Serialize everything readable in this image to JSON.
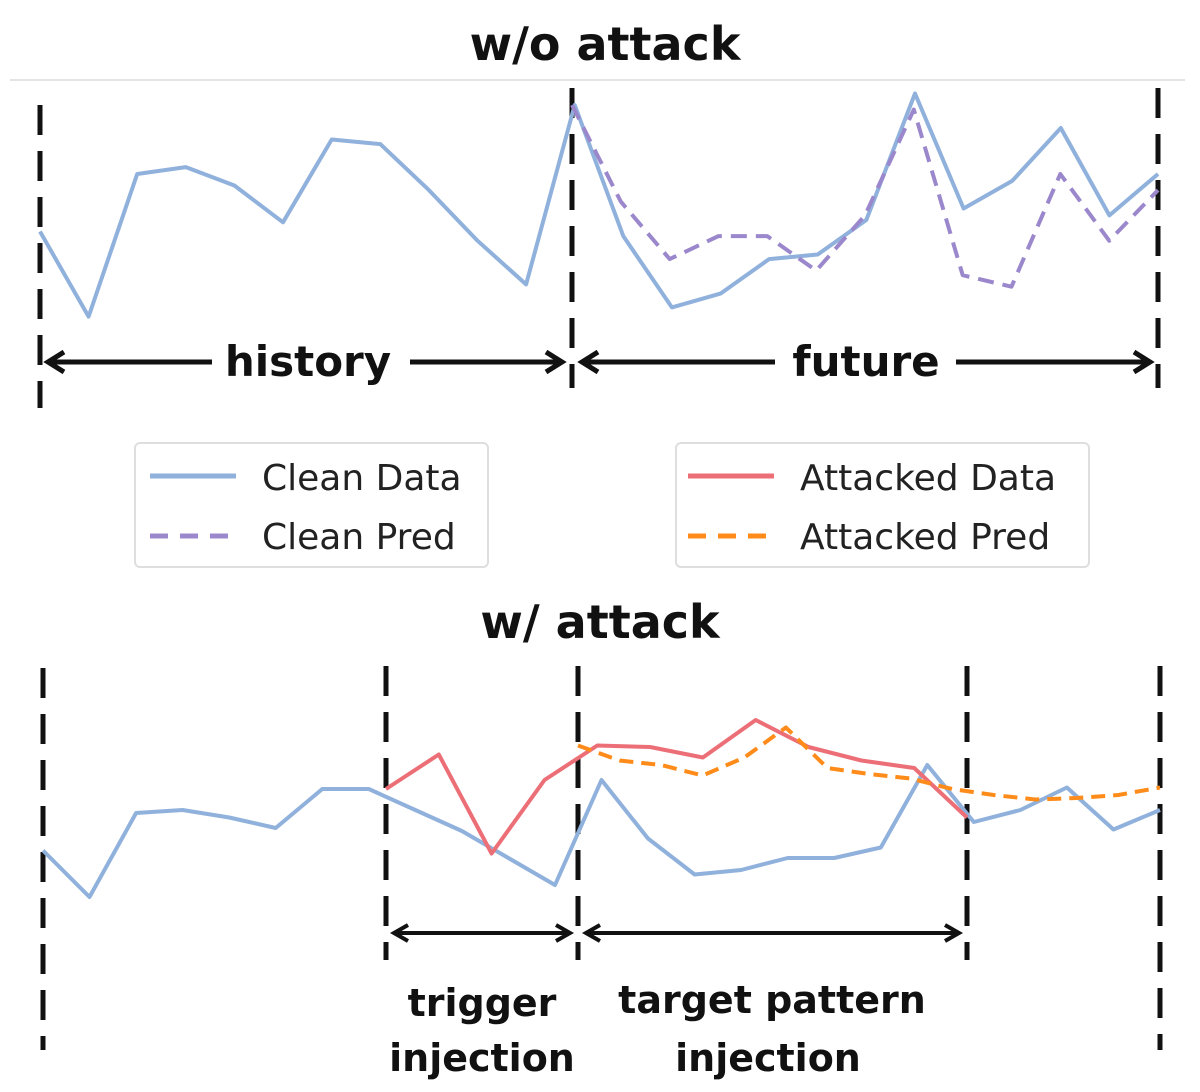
{
  "top_panel": {
    "title": "w/o attack",
    "history_label": "history",
    "future_label": "future"
  },
  "bottom_panel": {
    "title": "w/ attack",
    "trigger_label_line1": "trigger",
    "trigger_label_line2": "injection",
    "target_label_line1": "target pattern",
    "target_label_line2": "injection"
  },
  "legend": {
    "clean": [
      {
        "label": "Clean Data",
        "color": "#8fb1dc",
        "style": "solid"
      },
      {
        "label": "Clean Pred",
        "color": "#9b88cc",
        "style": "dashed"
      }
    ],
    "attacked": [
      {
        "label": "Attacked Data",
        "color": "#ec6f77",
        "style": "solid"
      },
      {
        "label": "Attacked Pred",
        "color": "#ff8c1a",
        "style": "dashed"
      }
    ]
  },
  "series": {
    "top_clean_data": [
      0.55,
      0.92,
      0.3,
      0.27,
      0.35,
      0.51,
      0.15,
      0.17,
      0.37,
      0.59,
      0.78,
      0.0,
      0.57,
      0.88,
      0.82,
      0.67,
      0.65,
      0.5,
      -0.05,
      0.45,
      0.33,
      0.1,
      0.48,
      0.3
    ],
    "top_clean_pred": [
      0.0,
      0.42,
      0.67,
      0.57,
      0.57,
      0.72,
      0.48,
      0.02,
      0.74,
      0.79,
      0.3,
      0.59,
      0.37
    ],
    "bottom_clean_data": [
      0.47,
      0.78,
      0.22,
      0.2,
      0.25,
      0.32,
      0.06,
      0.06,
      0.2,
      0.34,
      0.52,
      0.7,
      0.0,
      0.39,
      0.63,
      0.6,
      0.52,
      0.52,
      0.45,
      -0.1,
      0.28,
      0.2,
      0.05,
      0.33,
      0.2
    ],
    "bottom_attacked_data": [
      0.06,
      -0.17,
      0.49,
      0.0,
      -0.23,
      -0.22,
      -0.15,
      -0.4,
      -0.22,
      -0.13,
      -0.08,
      0.25
    ],
    "bottom_attacked_pred": [
      -0.23,
      -0.13,
      -0.1,
      -0.03,
      -0.15,
      -0.35,
      -0.08,
      -0.04,
      -0.01,
      0.06,
      0.1,
      0.13,
      0.12,
      0.1,
      0.05
    ]
  }
}
